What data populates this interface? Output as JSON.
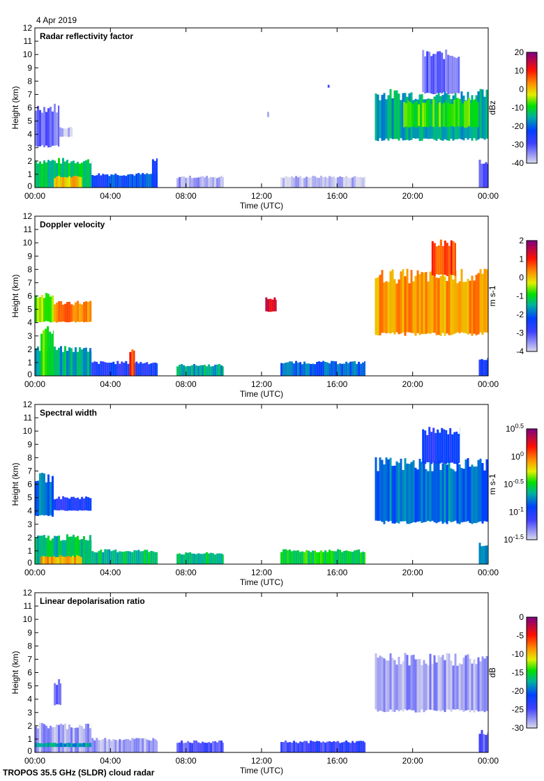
{
  "date": "4 Apr 2019",
  "footer": "TROPOS 35.5 GHz (SLDR) cloud radar",
  "chart_data": [
    {
      "type": "heatmap",
      "title": "Radar reflectivity factor",
      "xlabel": "Time (UTC)",
      "ylabel": "Height (km)",
      "xlim": [
        0,
        24
      ],
      "ylim": [
        0,
        12
      ],
      "x_ticks": [
        "00:00",
        "04:00",
        "08:00",
        "12:00",
        "16:00",
        "20:00",
        "00:00"
      ],
      "y_ticks": [
        "0",
        "1",
        "2",
        "3",
        "4",
        "5",
        "6",
        "7",
        "8",
        "9",
        "10",
        "11",
        "12"
      ],
      "colorbar": {
        "label": "dBz",
        "range": [
          -40,
          20
        ],
        "ticks": [
          "20",
          "10",
          "0",
          "-10",
          "-20",
          "-30",
          "-40"
        ]
      },
      "regions": [
        {
          "t": [
            0,
            3
          ],
          "h": [
            0,
            2
          ],
          "v": -12
        },
        {
          "t": [
            1,
            2.5
          ],
          "h": [
            0,
            0.8
          ],
          "v": 0
        },
        {
          "t": [
            0,
            1.3
          ],
          "h": [
            3,
            6
          ],
          "v": -33
        },
        {
          "t": [
            1.3,
            2
          ],
          "h": [
            3.8,
            4.5
          ],
          "v": -38
        },
        {
          "t": [
            3,
            6.5
          ],
          "h": [
            0,
            1
          ],
          "v": -22
        },
        {
          "t": [
            6.2,
            6.5
          ],
          "h": [
            0,
            2
          ],
          "v": -25
        },
        {
          "t": [
            7.5,
            10
          ],
          "h": [
            0,
            0.8
          ],
          "v": -36
        },
        {
          "t": [
            13,
            17.5
          ],
          "h": [
            0,
            0.8
          ],
          "v": -38
        },
        {
          "t": [
            18,
            24
          ],
          "h": [
            3.5,
            7
          ],
          "v": -15
        },
        {
          "t": [
            19.5,
            23.5
          ],
          "h": [
            4.5,
            6.5
          ],
          "v": -8
        },
        {
          "t": [
            20.5,
            22.5
          ],
          "h": [
            7,
            10
          ],
          "v": -32
        },
        {
          "t": [
            23.5,
            24
          ],
          "h": [
            0,
            2
          ],
          "v": -30
        },
        {
          "t": [
            15.5,
            15.6
          ],
          "h": [
            7.5,
            7.7
          ],
          "v": -32
        },
        {
          "t": [
            12.3,
            12.4
          ],
          "h": [
            5.3,
            5.7
          ],
          "v": -36
        }
      ]
    },
    {
      "type": "heatmap",
      "title": "Doppler velocity",
      "xlabel": "Time (UTC)",
      "ylabel": "Height (km)",
      "xlim": [
        0,
        24
      ],
      "ylim": [
        0,
        12
      ],
      "x_ticks": [
        "00:00",
        "04:00",
        "08:00",
        "12:00",
        "16:00",
        "20:00",
        "00:00"
      ],
      "y_ticks": [
        "0",
        "1",
        "2",
        "3",
        "4",
        "5",
        "6",
        "7",
        "8",
        "9",
        "10",
        "11",
        "12"
      ],
      "colorbar": {
        "label": "m s-1",
        "range": [
          -4,
          2
        ],
        "ticks": [
          "2",
          "1",
          "0",
          "-1",
          "-2",
          "-3",
          "-4"
        ]
      },
      "regions": [
        {
          "t": [
            0,
            3
          ],
          "h": [
            0,
            2
          ],
          "v": -1.5
        },
        {
          "t": [
            0.3,
            1
          ],
          "h": [
            0,
            3.5
          ],
          "v": -0.8
        },
        {
          "t": [
            0,
            1
          ],
          "h": [
            4,
            6
          ],
          "v": -0.5
        },
        {
          "t": [
            1,
            3
          ],
          "h": [
            4,
            5.5
          ],
          "v": 0.4
        },
        {
          "t": [
            3,
            6.5
          ],
          "h": [
            0,
            1
          ],
          "v": -2.5
        },
        {
          "t": [
            5,
            5.3
          ],
          "h": [
            0,
            1.8
          ],
          "v": 0.8
        },
        {
          "t": [
            7.5,
            10
          ],
          "h": [
            0,
            0.8
          ],
          "v": -1.5
        },
        {
          "t": [
            12.2,
            12.8
          ],
          "h": [
            4.8,
            5.8
          ],
          "v": 1.3
        },
        {
          "t": [
            13,
            17.5
          ],
          "h": [
            0,
            1
          ],
          "v": -2
        },
        {
          "t": [
            18,
            24
          ],
          "h": [
            3,
            7.5
          ],
          "v": 0.3
        },
        {
          "t": [
            21,
            22.3
          ],
          "h": [
            7.5,
            10
          ],
          "v": 0.8
        },
        {
          "t": [
            23.5,
            24
          ],
          "h": [
            0,
            1.2
          ],
          "v": -2.5
        }
      ]
    },
    {
      "type": "heatmap",
      "title": "Spectral width",
      "xlabel": "Time (UTC)",
      "ylabel": "Height (km)",
      "xlim": [
        0,
        24
      ],
      "ylim": [
        0,
        12
      ],
      "x_ticks": [
        "00:00",
        "04:00",
        "08:00",
        "12:00",
        "16:00",
        "20:00",
        "00:00"
      ],
      "y_ticks": [
        "0",
        "1",
        "2",
        "3",
        "4",
        "5",
        "6",
        "7",
        "8",
        "9",
        "10",
        "11",
        "12"
      ],
      "colorbar": {
        "label": "m s-1",
        "range": [
          -1.5,
          0.5
        ],
        "log": true,
        "ticks": [
          "10^0.5",
          "10^0",
          "10^-0.5",
          "10^-1",
          "10^-1.5"
        ]
      },
      "regions": [
        {
          "t": [
            0,
            3
          ],
          "h": [
            0,
            2
          ],
          "v": -0.6
        },
        {
          "t": [
            0.3,
            2.5
          ],
          "h": [
            0,
            0.6
          ],
          "v": -0.1
        },
        {
          "t": [
            0,
            1
          ],
          "h": [
            3.5,
            6.5
          ],
          "v": -0.8
        },
        {
          "t": [
            1,
            3
          ],
          "h": [
            4,
            5
          ],
          "v": -1.0
        },
        {
          "t": [
            3,
            6.5
          ],
          "h": [
            0,
            1
          ],
          "v": -0.6
        },
        {
          "t": [
            7.5,
            10
          ],
          "h": [
            0,
            0.8
          ],
          "v": -0.6
        },
        {
          "t": [
            13,
            17.5
          ],
          "h": [
            0,
            1
          ],
          "v": -0.5
        },
        {
          "t": [
            18,
            24
          ],
          "h": [
            3,
            7.5
          ],
          "v": -0.8
        },
        {
          "t": [
            20.5,
            22.5
          ],
          "h": [
            7.5,
            10
          ],
          "v": -1.0
        },
        {
          "t": [
            23.5,
            24
          ],
          "h": [
            0,
            1.5
          ],
          "v": -0.7
        }
      ]
    },
    {
      "type": "heatmap",
      "title": "Linear depolarisation ratio",
      "xlabel": "Time (UTC)",
      "ylabel": "Height (km)",
      "xlim": [
        0,
        24
      ],
      "ylim": [
        0,
        12
      ],
      "x_ticks": [
        "00:00",
        "04:00",
        "08:00",
        "12:00",
        "16:00",
        "20:00",
        "00:00"
      ],
      "y_ticks": [
        "0",
        "1",
        "2",
        "3",
        "4",
        "5",
        "6",
        "7",
        "8",
        "9",
        "10",
        "11",
        "12"
      ],
      "colorbar": {
        "label": "dB",
        "range": [
          -30,
          0
        ],
        "ticks": [
          "0",
          "-5",
          "-10",
          "-15",
          "-20",
          "-25",
          "-30"
        ]
      },
      "regions": [
        {
          "t": [
            0,
            3
          ],
          "h": [
            0,
            2
          ],
          "v": -28
        },
        {
          "t": [
            0,
            3
          ],
          "h": [
            0.4,
            0.7
          ],
          "v": -18
        },
        {
          "t": [
            3,
            6.5
          ],
          "h": [
            0,
            1
          ],
          "v": -28
        },
        {
          "t": [
            1,
            1.4
          ],
          "h": [
            3.5,
            5.3
          ],
          "v": -26
        },
        {
          "t": [
            7.5,
            10
          ],
          "h": [
            0,
            0.8
          ],
          "v": -25
        },
        {
          "t": [
            13,
            17.5
          ],
          "h": [
            0,
            0.8
          ],
          "v": -24
        },
        {
          "t": [
            18,
            24
          ],
          "h": [
            3,
            7
          ],
          "v": -28
        },
        {
          "t": [
            23.5,
            24
          ],
          "h": [
            0,
            1.5
          ],
          "v": -25
        }
      ]
    }
  ]
}
